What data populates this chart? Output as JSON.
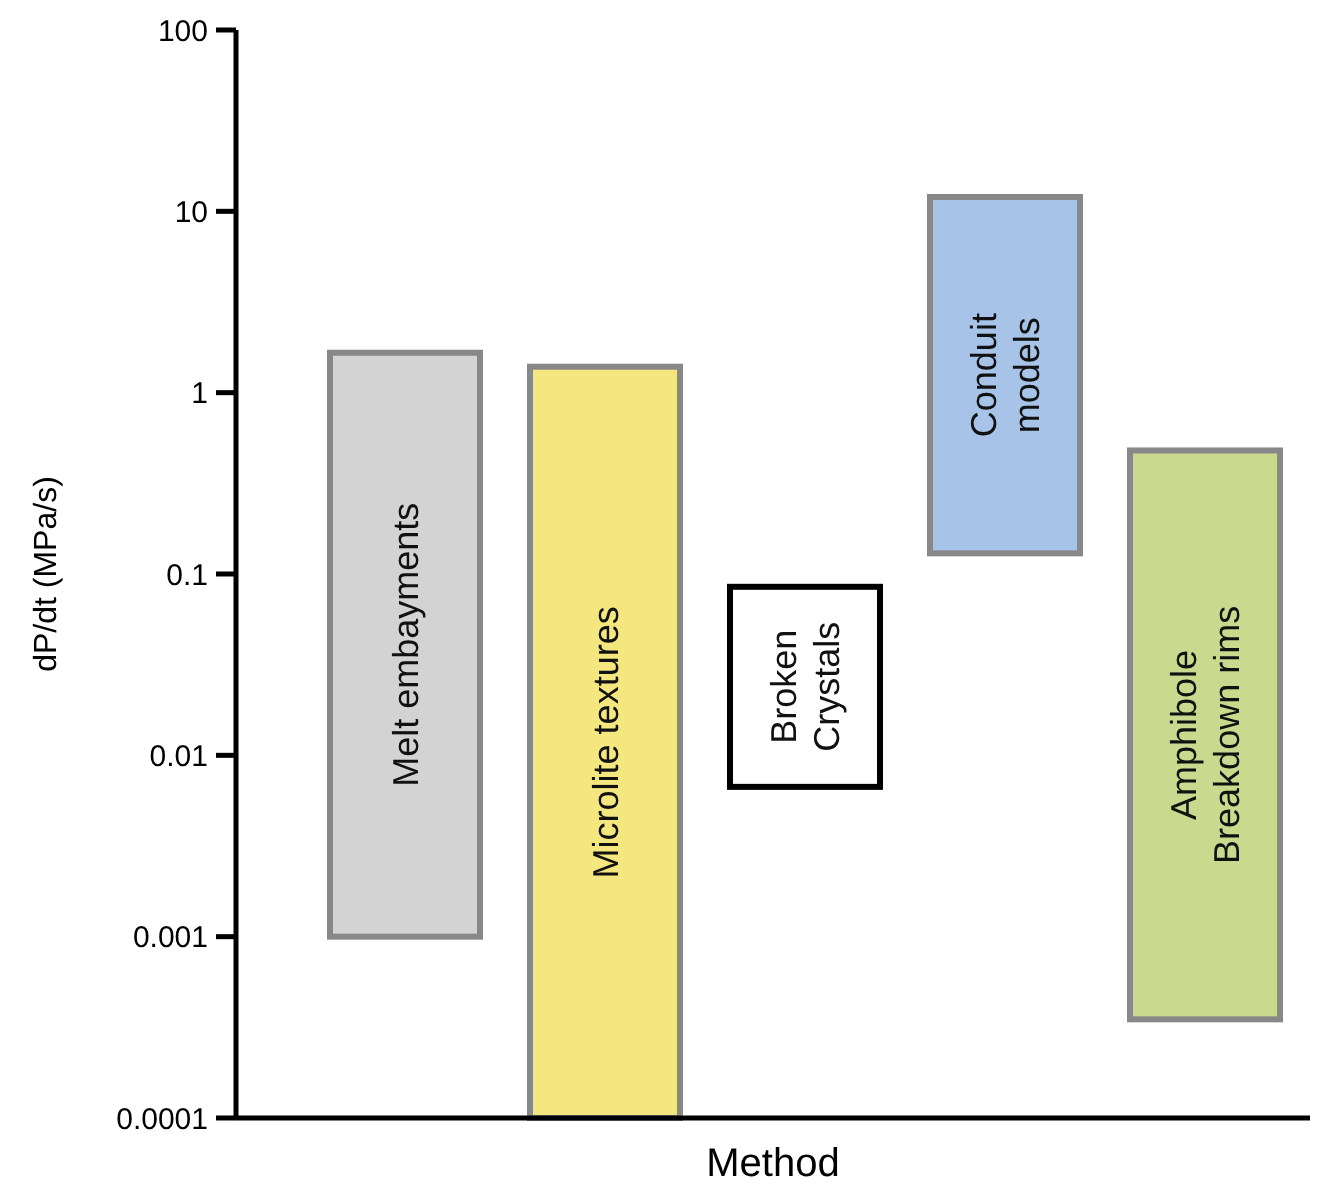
{
  "chart_data": {
    "type": "bar",
    "xlabel": "Method",
    "ylabel": "dP/dt (MPa/s)",
    "categories": [
      "Melt embayments",
      "Microlite textures",
      "Broken\nCrystals",
      "Conduit\nmodels",
      "Amphibole\nBreakdown rims"
    ],
    "base": [
      0.001,
      0.0001,
      0.0067,
      0.13,
      0.00035
    ],
    "values": [
      1.659,
      1.3899,
      0.0783,
      11.87,
      0.47965
    ],
    "colors": [
      "#d3d3d3",
      "#f5e77f",
      "#ffffff",
      "#a7c3e8",
      "#c9da8e"
    ],
    "log": true,
    "ylim": [
      0.0001,
      100
    ],
    "yticks": [
      0.0001,
      0.001,
      0.01,
      0.1,
      1,
      10,
      100
    ]
  }
}
